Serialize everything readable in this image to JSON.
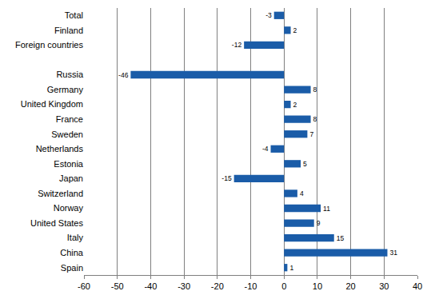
{
  "chart_data": {
    "type": "bar",
    "orientation": "horizontal",
    "categories": [
      "Total",
      "Finland",
      "Foreign countries",
      null,
      "Russia",
      "Germany",
      "United Kingdom",
      "France",
      "Sweden",
      "Netherlands",
      "Estonia",
      "Japan",
      "Switzerland",
      "Norway",
      "United States",
      "Italy",
      "China",
      "Spain"
    ],
    "values": [
      -3,
      2,
      -12,
      null,
      -46,
      8,
      2,
      8,
      7,
      -4,
      5,
      -15,
      4,
      11,
      9,
      15,
      31,
      1
    ],
    "color": "#1a5ca8",
    "xlim": [
      -60,
      40
    ],
    "xticks": [
      -60,
      -50,
      -40,
      -30,
      -20,
      -10,
      0,
      10,
      20,
      30,
      40
    ],
    "grid": true,
    "data_labels": true
  }
}
